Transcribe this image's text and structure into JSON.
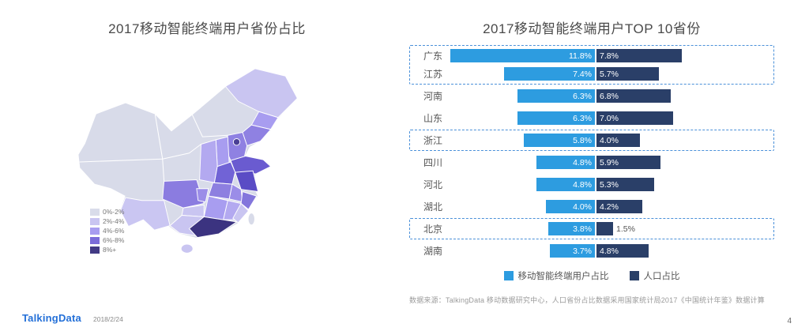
{
  "page": {
    "footer_logo": "TalkingData",
    "footer_date": "2018/2/24",
    "page_number": "4",
    "source_note": "数据来源：TalkingData 移动数据研究中心，人口省份占比数据采用国家统计局2017《中国统计年鉴》数据计算"
  },
  "map_panel": {
    "title": "2017移动智能终端用户省份占比",
    "legend": [
      {
        "label": "0%-2%",
        "color": "#d9dcea"
      },
      {
        "label": "2%-4%",
        "color": "#c9c5f1"
      },
      {
        "label": "4%-6%",
        "color": "#a89df0"
      },
      {
        "label": "6%-8%",
        "color": "#7b6cd9"
      },
      {
        "label": "8%+",
        "color": "#423a85"
      }
    ]
  },
  "chart_panel": {
    "title": "2017移动智能终端用户TOP 10省份",
    "legend": [
      {
        "label": "移动智能终端用户占比",
        "color": "#2d9ce0"
      },
      {
        "label": "人口占比",
        "color": "#2a3f68"
      }
    ]
  },
  "chart_data": {
    "type": "bar",
    "orientation": "horizontal",
    "title": "2017移动智能终端用户TOP 10省份",
    "categories": [
      "广东",
      "江苏",
      "河南",
      "山东",
      "浙江",
      "四川",
      "河北",
      "湖北",
      "北京",
      "湖南"
    ],
    "series": [
      {
        "name": "移动智能终端用户占比",
        "values": [
          11.8,
          7.4,
          6.3,
          6.3,
          5.8,
          4.8,
          4.8,
          4.0,
          3.8,
          3.7
        ]
      },
      {
        "name": "人口占比",
        "values": [
          7.8,
          5.7,
          6.8,
          7.0,
          4.0,
          5.9,
          5.3,
          4.2,
          1.5,
          4.8
        ]
      }
    ],
    "value_unit": "%",
    "highlight_rows": [
      [
        0,
        1
      ],
      [
        4
      ],
      [
        8
      ]
    ],
    "legend_position": "bottom"
  }
}
